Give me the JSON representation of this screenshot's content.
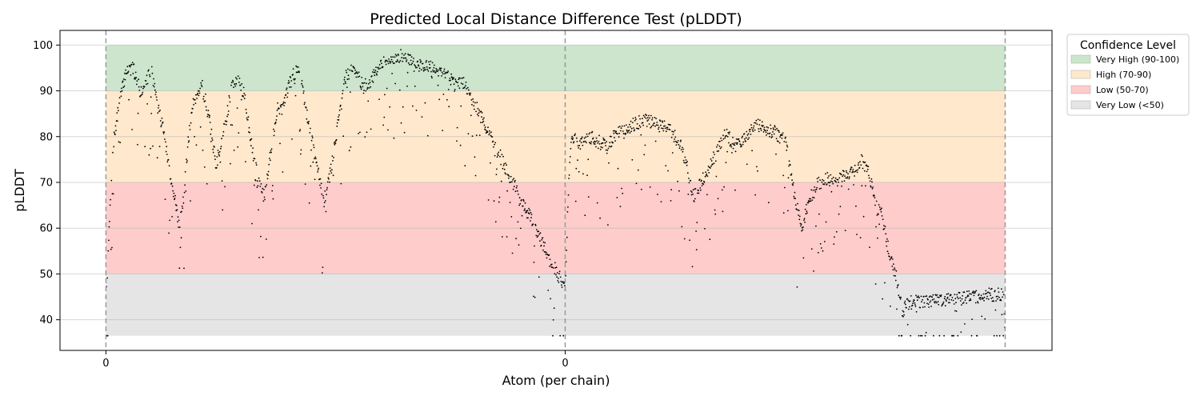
{
  "chart_data": {
    "type": "scatter",
    "title": "Predicted Local Distance Difference Test (pLDDT)",
    "xlabel": "Atom (per chain)",
    "ylabel": "pLDDT",
    "ylim": [
      33.3,
      103.2
    ],
    "yticks": [
      40,
      50,
      60,
      70,
      80,
      90,
      100
    ],
    "xlim": [
      -100,
      2060
    ],
    "chain_starts": [
      0,
      1000
    ],
    "chain_tick_labels": [
      "0",
      "0"
    ],
    "chain_boundaries": [
      0,
      1000,
      1958
    ],
    "grid": true,
    "point_color": "#000000",
    "confidence_bands": [
      {
        "label": "Very High (90-100)",
        "ymin": 90,
        "ymax": 100,
        "color": "#cce5cc"
      },
      {
        "label": "High (70-90)",
        "ymin": 70,
        "ymax": 90,
        "color": "#ffe8cc"
      },
      {
        "label": "Low (50-70)",
        "ymin": 50,
        "ymax": 70,
        "color": "#ffcccc"
      },
      {
        "label": "Very Low (<50)",
        "ymin": 36.5,
        "ymax": 50,
        "color": "#e5e5e5"
      }
    ],
    "legend": {
      "title": "Confidence Level",
      "position": "outside-top-right"
    },
    "series": [
      {
        "type": "scatter",
        "trend": [
          [
            0,
            44
          ],
          [
            8,
            62
          ],
          [
            15,
            78
          ],
          [
            30,
            88
          ],
          [
            45,
            95
          ],
          [
            60,
            95
          ],
          [
            75,
            90
          ],
          [
            90,
            93
          ],
          [
            100,
            95
          ],
          [
            110,
            88
          ],
          [
            125,
            82
          ],
          [
            140,
            72
          ],
          [
            150,
            67
          ],
          [
            160,
            60
          ],
          [
            170,
            68
          ],
          [
            180,
            80
          ],
          [
            190,
            88
          ],
          [
            210,
            92
          ],
          [
            225,
            84
          ],
          [
            240,
            74
          ],
          [
            260,
            83
          ],
          [
            275,
            92
          ],
          [
            285,
            93
          ],
          [
            300,
            90
          ],
          [
            315,
            80
          ],
          [
            330,
            72
          ],
          [
            345,
            67
          ],
          [
            360,
            78
          ],
          [
            375,
            87
          ],
          [
            385,
            86
          ],
          [
            400,
            92
          ],
          [
            420,
            96
          ],
          [
            440,
            84
          ],
          [
            460,
            74
          ],
          [
            475,
            66
          ],
          [
            490,
            73
          ],
          [
            505,
            83
          ],
          [
            520,
            93
          ],
          [
            540,
            96
          ],
          [
            560,
            91
          ],
          [
            580,
            93
          ],
          [
            600,
            96
          ],
          [
            620,
            97
          ],
          [
            640,
            98
          ],
          [
            660,
            97
          ],
          [
            680,
            96
          ],
          [
            700,
            96
          ],
          [
            720,
            95
          ],
          [
            740,
            94
          ],
          [
            760,
            92
          ],
          [
            780,
            92
          ],
          [
            1000,
            47
          ],
          [
            1008,
            72
          ],
          [
            1015,
            80
          ],
          [
            1030,
            79
          ],
          [
            1060,
            80
          ],
          [
            1090,
            78
          ],
          [
            1110,
            81
          ],
          [
            1130,
            82
          ],
          [
            1150,
            83
          ],
          [
            1175,
            84
          ],
          [
            1200,
            83
          ],
          [
            1225,
            82
          ],
          [
            1250,
            79
          ],
          [
            1265,
            74
          ],
          [
            1280,
            67
          ],
          [
            1295,
            70
          ],
          [
            1310,
            73
          ],
          [
            1330,
            77
          ],
          [
            1350,
            81
          ],
          [
            1370,
            78
          ],
          [
            1390,
            80
          ],
          [
            1420,
            83
          ],
          [
            1440,
            82
          ],
          [
            1460,
            81
          ],
          [
            1480,
            79
          ],
          [
            1490,
            73
          ],
          [
            1500,
            67
          ],
          [
            1515,
            60
          ],
          [
            1530,
            66
          ],
          [
            1550,
            70
          ],
          [
            1570,
            71
          ],
          [
            1590,
            70
          ],
          [
            1610,
            72
          ],
          [
            1630,
            73
          ],
          [
            1645,
            75
          ],
          [
            1660,
            73
          ],
          [
            1675,
            66
          ],
          [
            1690,
            63
          ],
          [
            1705,
            55
          ],
          [
            1720,
            50
          ],
          [
            1735,
            42
          ],
          [
            1745,
            44
          ],
          [
            1958,
            46
          ]
        ],
        "spread_below": 18,
        "spread_above": 1.5,
        "outlier_fraction": 0.18,
        "points_per_chain": [
          1000,
          958
        ]
      }
    ]
  }
}
